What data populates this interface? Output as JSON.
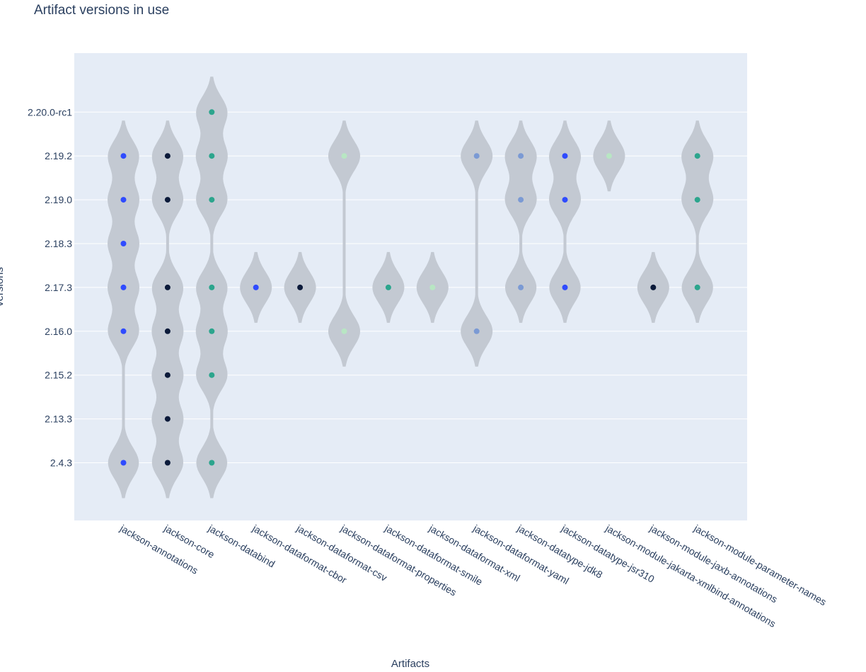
{
  "chart_data": {
    "type": "violin",
    "title": "Artifact versions in use",
    "xlabel": "Artifacts",
    "ylabel": "versions",
    "y_categories": [
      "2.4.3",
      "2.13.3",
      "2.15.2",
      "2.16.0",
      "2.17.3",
      "2.18.3",
      "2.19.0",
      "2.19.2",
      "2.20.0-rc1"
    ],
    "categories": [
      "jackson-annotations",
      "jackson-core",
      "jackson-databind",
      "jackson-dataformat-cbor",
      "jackson-dataformat-csv",
      "jackson-dataformat-properties",
      "jackson-dataformat-smile",
      "jackson-dataformat-xml",
      "jackson-dataformat-yaml",
      "jackson-datatype-jdk8",
      "jackson-datatype-jsr310",
      "jackson-module-jakarta-xmlbind-annotations",
      "jackson-module-jaxb-annotations",
      "jackson-module-parameter-names"
    ],
    "series": [
      {
        "artifact": "jackson-annotations",
        "color": "#2f4bff",
        "versions": [
          "2.4.3",
          "2.16.0",
          "2.17.3",
          "2.18.3",
          "2.19.0",
          "2.19.2"
        ]
      },
      {
        "artifact": "jackson-core",
        "color": "#0b1a3a",
        "versions": [
          "2.4.3",
          "2.13.3",
          "2.15.2",
          "2.16.0",
          "2.17.3",
          "2.19.0",
          "2.19.2"
        ]
      },
      {
        "artifact": "jackson-databind",
        "color": "#2ca58d",
        "versions": [
          "2.4.3",
          "2.15.2",
          "2.16.0",
          "2.17.3",
          "2.19.0",
          "2.19.2",
          "2.20.0-rc1"
        ]
      },
      {
        "artifact": "jackson-dataformat-cbor",
        "color": "#2f4bff",
        "versions": [
          "2.17.3"
        ]
      },
      {
        "artifact": "jackson-dataformat-csv",
        "color": "#0b1a3a",
        "versions": [
          "2.17.3"
        ]
      },
      {
        "artifact": "jackson-dataformat-properties",
        "color": "#b8e6c3",
        "versions": [
          "2.16.0",
          "2.19.2"
        ]
      },
      {
        "artifact": "jackson-dataformat-smile",
        "color": "#2ca58d",
        "versions": [
          "2.17.3"
        ]
      },
      {
        "artifact": "jackson-dataformat-xml",
        "color": "#b8e6c3",
        "versions": [
          "2.17.3"
        ]
      },
      {
        "artifact": "jackson-dataformat-yaml",
        "color": "#7b9ad4",
        "versions": [
          "2.16.0",
          "2.19.2"
        ]
      },
      {
        "artifact": "jackson-datatype-jdk8",
        "color": "#7b9ad4",
        "versions": [
          "2.17.3",
          "2.19.0",
          "2.19.2"
        ]
      },
      {
        "artifact": "jackson-datatype-jsr310",
        "color": "#2f4bff",
        "versions": [
          "2.17.3",
          "2.19.0",
          "2.19.2"
        ]
      },
      {
        "artifact": "jackson-module-jakarta-xmlbind-annotations",
        "color": "#b8e6c3",
        "versions": [
          "2.19.2"
        ]
      },
      {
        "artifact": "jackson-module-jaxb-annotations",
        "color": "#0b1a3a",
        "versions": [
          "2.17.3"
        ]
      },
      {
        "artifact": "jackson-module-parameter-names",
        "color": "#2ca58d",
        "versions": [
          "2.17.3",
          "2.19.0",
          "2.19.2"
        ]
      }
    ],
    "grid": true,
    "plot_background": "#e5ecf6",
    "violin_fill": "#c3c9d2"
  }
}
